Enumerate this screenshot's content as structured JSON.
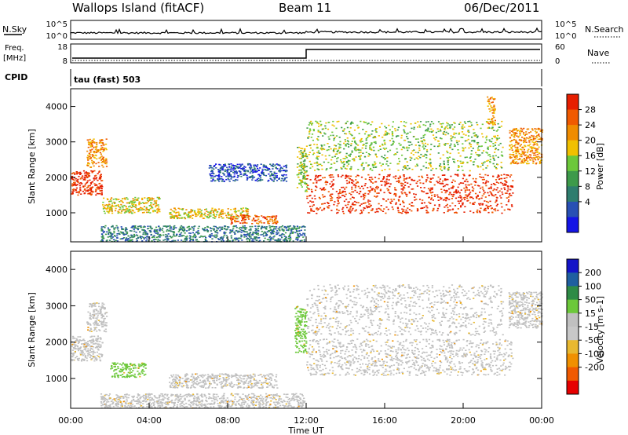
{
  "header": {
    "station": "Wallops Island (fitACF)",
    "beam": "Beam 11",
    "date": "06/Dec/2011"
  },
  "strip_panels": {
    "nsky": {
      "label": "N.Sky",
      "right_label": "N.Search",
      "left_ticks": [
        "10^5",
        "10^0"
      ],
      "right_ticks": [
        "10^5",
        "10^0"
      ]
    },
    "freq": {
      "label_line1": "Freq.",
      "label_line2": "[MHz]",
      "left_ticks": [
        "18",
        "8"
      ],
      "right_label": "Nave",
      "right_ticks": [
        "60",
        "0"
      ],
      "cpid_label": "CPID",
      "program": "tau (fast) 503"
    }
  },
  "colors": {
    "power_scale": [
      "#1414e6",
      "#2850b4",
      "#2e7d6e",
      "#3d9a4a",
      "#6cc83a",
      "#f0c000",
      "#f08c00",
      "#f05a00",
      "#e61e00"
    ],
    "velocity_scale": [
      "#e60000",
      "#f05a00",
      "#f09000",
      "#e8b830",
      "#c8c8c8",
      "#c0c0c0",
      "#6cc83a",
      "#2e8b46",
      "#1f5fa0",
      "#1414c8"
    ]
  },
  "chart_data": [
    {
      "type": "heatmap",
      "name": "power-panel",
      "xlabel": "",
      "ylabel": "Slant Range [km]",
      "y_ticks": [
        "1000",
        "2000",
        "3000",
        "4000"
      ],
      "ylim": [
        180,
        4500
      ],
      "colorbar_label": "Power [dB]",
      "colorbar_ticks": [
        "4",
        "8",
        "12",
        "16",
        "20",
        "24",
        "28"
      ],
      "features": [
        {
          "t0": 0.0,
          "t1": 1.6,
          "r0": 1500,
          "r1": 2200,
          "level": 8
        },
        {
          "t0": 0.8,
          "t1": 1.8,
          "r0": 2300,
          "r1": 3100,
          "level": 6
        },
        {
          "t0": 1.6,
          "t1": 4.5,
          "r0": 1000,
          "r1": 1450,
          "level": 5
        },
        {
          "t0": 5.0,
          "t1": 9.0,
          "r0": 850,
          "r1": 1150,
          "level": 5
        },
        {
          "t0": 8.0,
          "t1": 10.5,
          "r0": 700,
          "r1": 950,
          "level": 7
        },
        {
          "t0": 1.5,
          "t1": 11.9,
          "r0": 200,
          "r1": 650,
          "level": 2
        },
        {
          "t0": 7.0,
          "t1": 11.0,
          "r0": 1900,
          "r1": 2400,
          "level": 1
        },
        {
          "t0": 11.5,
          "t1": 12.0,
          "r0": 1600,
          "r1": 2900,
          "level": 4
        },
        {
          "t0": 12.0,
          "t1": 22.5,
          "r0": 1000,
          "r1": 2100,
          "level": 8
        },
        {
          "t0": 12.0,
          "t1": 22.0,
          "r0": 2200,
          "r1": 3600,
          "level": 4
        },
        {
          "t0": 21.2,
          "t1": 21.6,
          "r0": 3500,
          "r1": 4300,
          "level": 6
        },
        {
          "t0": 22.3,
          "t1": 24.0,
          "r0": 2400,
          "r1": 3400,
          "level": 6
        }
      ]
    },
    {
      "type": "heatmap",
      "name": "velocity-panel",
      "xlabel": "Time UT",
      "ylabel": "Slant Range [km]",
      "x_ticks": [
        "00:00",
        "04:00",
        "08:00",
        "12:00",
        "16:00",
        "20:00",
        "00:00"
      ],
      "xlim": [
        0,
        24
      ],
      "y_ticks": [
        "1000",
        "2000",
        "3000",
        "4000"
      ],
      "ylim": [
        180,
        4500
      ],
      "colorbar_label": "Velocity [m s-1]",
      "colorbar_ticks": [
        "200",
        "100",
        "50",
        "15",
        "-15",
        "-50",
        "-100",
        "-200"
      ],
      "features": [
        {
          "t0": 0.0,
          "t1": 1.6,
          "r0": 1500,
          "r1": 2200,
          "velocity": 0
        },
        {
          "t0": 0.8,
          "t1": 1.8,
          "r0": 2300,
          "r1": 3100,
          "velocity": 0
        },
        {
          "t0": 2.0,
          "t1": 3.8,
          "r0": 1050,
          "r1": 1450,
          "velocity": 50
        },
        {
          "t0": 5.0,
          "t1": 10.5,
          "r0": 750,
          "r1": 1150,
          "velocity": 0
        },
        {
          "t0": 1.5,
          "t1": 11.9,
          "r0": 200,
          "r1": 600,
          "velocity": 0
        },
        {
          "t0": 11.4,
          "t1": 12.0,
          "r0": 1700,
          "r1": 3000,
          "velocity": 50
        },
        {
          "t0": 12.0,
          "t1": 22.5,
          "r0": 1100,
          "r1": 2100,
          "velocity": 0
        },
        {
          "t0": 12.0,
          "t1": 22.0,
          "r0": 2200,
          "r1": 3600,
          "velocity": 0
        },
        {
          "t0": 22.3,
          "t1": 24.0,
          "r0": 2400,
          "r1": 3400,
          "velocity": 0
        }
      ]
    }
  ]
}
